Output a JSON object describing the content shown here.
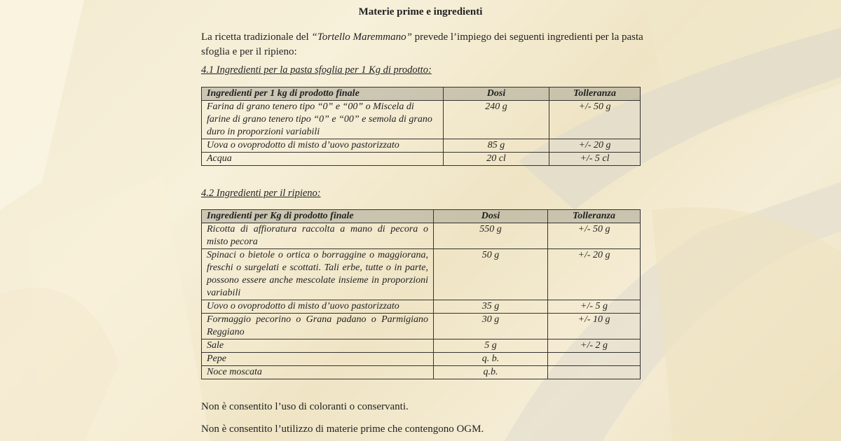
{
  "title": "Materie prime e ingredienti",
  "intro": {
    "before": "La ricetta tradizionale del ",
    "product": "“Tortello Maremmano”",
    "after": " prevede l’impiego dei seguenti ingredienti per la pasta sfoglia e per il ripieno:"
  },
  "section1": {
    "heading": "4.1 Ingredienti per la pasta sfoglia per 1 Kg di prodotto:",
    "headers": [
      "Ingredienti per 1 kg di prodotto finale",
      "Dosi",
      "Tolleranza"
    ],
    "rows": [
      [
        "Farina di grano tenero tipo “0” e “00” o Miscela di farine di grano tenero tipo “0” e “00” e semola di grano duro in proporzioni variabili",
        "240 g",
        "+/- 50 g"
      ],
      [
        "Uova o ovoprodotto di misto d’uovo pastorizzato",
        "85 g",
        "+/- 20 g"
      ],
      [
        "Acqua",
        "20 cl",
        "+/- 5 cl"
      ]
    ]
  },
  "section2": {
    "heading": "4.2 Ingredienti per il ripieno:",
    "headers": [
      "Ingredienti per Kg di prodotto finale",
      "Dosi",
      "Tolleranza"
    ],
    "rows": [
      [
        "Ricotta di affioratura raccolta a mano di pecora o misto pecora",
        "550 g",
        "+/- 50 g"
      ],
      [
        "Spinaci o bietole o ortica o borraggine o maggiorana, freschi o surgelati e scottati. Tali erbe, tutte o in parte, possono essere anche mescolate insieme in proporzioni variabili",
        "50 g",
        "+/- 20 g"
      ],
      [
        "Uovo o ovoprodotto di misto d’uovo pastorizzato",
        "35 g",
        "+/- 5 g"
      ],
      [
        "Formaggio pecorino o Grana padano o Parmigiano Reggiano",
        "30 g",
        "+/- 10 g"
      ],
      [
        "Sale",
        "5 g",
        "+/- 2 g"
      ],
      [
        "Pepe",
        "q. b.",
        ""
      ],
      [
        "Noce moscata",
        "q.b.",
        ""
      ]
    ]
  },
  "footer": [
    "Non è consentito l’uso di coloranti o conservanti.",
    "Non è consentito l’utilizzo di materie prime che contengono OGM."
  ]
}
